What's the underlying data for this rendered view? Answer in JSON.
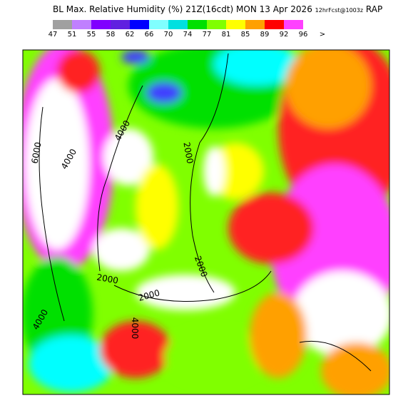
{
  "header": {
    "title": "BL Max. Relative Humidity (%) 21Z(16cdt) MON 13 Apr 2026",
    "forecast": "12hrFcst@1003z",
    "model": "RAP"
  },
  "legend": {
    "items": [
      {
        "label": "47",
        "color": "#a0a0a0"
      },
      {
        "label": "51",
        "color": "#c080ff"
      },
      {
        "label": "55",
        "color": "#8000ff"
      },
      {
        "label": "58",
        "color": "#6020e0"
      },
      {
        "label": "62",
        "color": "#0000ff"
      },
      {
        "label": "66",
        "color": "#80ffff"
      },
      {
        "label": "70",
        "color": "#00e0e0"
      },
      {
        "label": "74",
        "color": "#00e000"
      },
      {
        "label": "77",
        "color": "#80ff00"
      },
      {
        "label": "81",
        "color": "#ffff00"
      },
      {
        "label": "85",
        "color": "#ffa000"
      },
      {
        "label": "89",
        "color": "#ff0000"
      },
      {
        "label": "92",
        "color": "#ff40ff"
      },
      {
        "label": "96",
        "color": "#ffffff"
      },
      {
        "label": ">",
        "color": "#ffffff"
      }
    ]
  },
  "contour_labels": [
    "6000",
    "4000",
    "4000",
    "2000",
    "2000",
    "2000",
    "2000",
    "4000",
    "4000"
  ]
}
